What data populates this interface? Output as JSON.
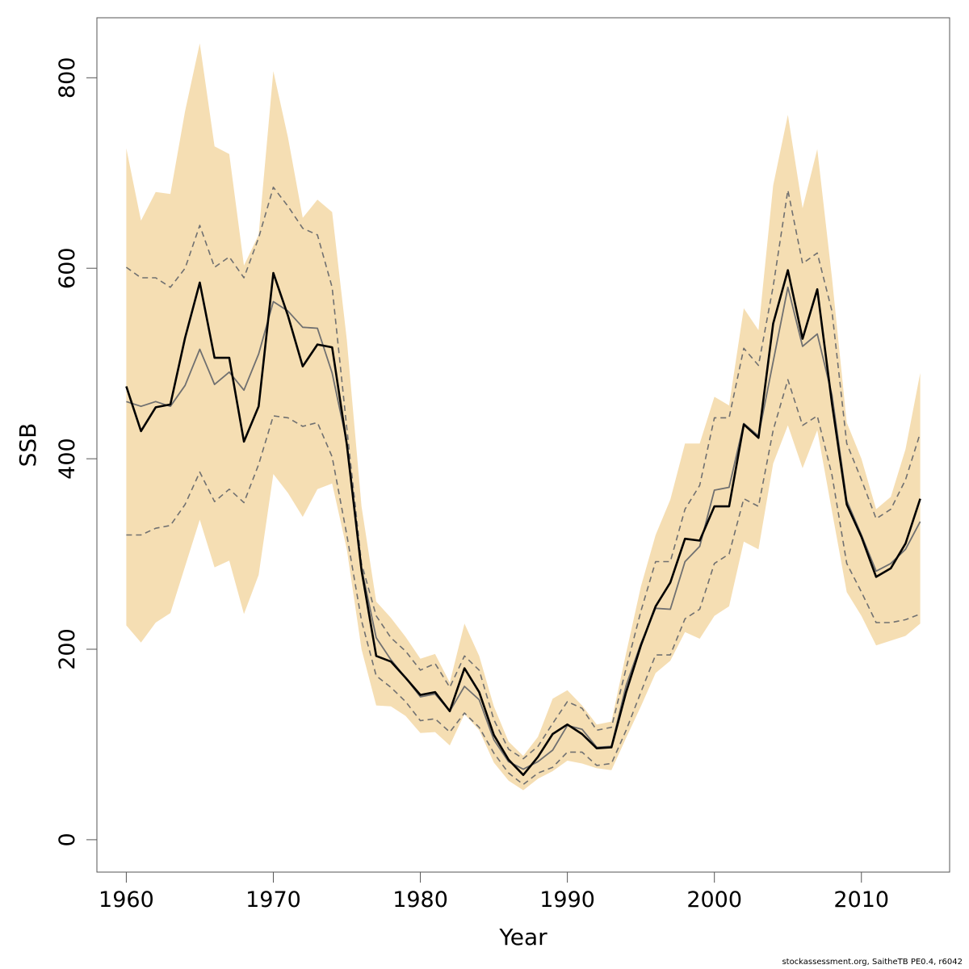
{
  "chart_data": {
    "type": "line",
    "xlabel": "Year",
    "ylabel": "SSB",
    "xlim": [
      1958,
      2016
    ],
    "ylim": [
      -34,
      863
    ],
    "x_ticks": [
      1960,
      1970,
      1980,
      1990,
      2000,
      2010
    ],
    "y_ticks": [
      0,
      200,
      400,
      600,
      800
    ],
    "grid": false,
    "legend": "none",
    "colors": {
      "band": "#f5deb3",
      "estimate": "#000000",
      "median": "#707070",
      "quantile": "#707070"
    },
    "x": [
      1960,
      1961,
      1962,
      1963,
      1964,
      1965,
      1966,
      1967,
      1968,
      1969,
      1970,
      1971,
      1972,
      1973,
      1974,
      1975,
      1976,
      1977,
      1978,
      1979,
      1980,
      1981,
      1982,
      1983,
      1984,
      1985,
      1986,
      1987,
      1988,
      1989,
      1990,
      1991,
      1992,
      1993,
      1994,
      1995,
      1996,
      1997,
      1998,
      1999,
      2000,
      2001,
      2002,
      2003,
      2004,
      2005,
      2006,
      2007,
      2008,
      2009,
      2010,
      2011,
      2012,
      2013,
      2014
    ],
    "series": [
      {
        "role": "band_upper",
        "values": [
          726,
          650,
          680,
          678,
          765,
          836,
          728,
          720,
          603,
          635,
          807,
          737,
          653,
          672,
          659,
          525,
          350,
          250,
          233,
          213,
          190,
          195,
          165,
          227,
          193,
          140,
          103,
          88,
          108,
          148,
          157,
          141,
          121,
          124,
          196,
          266,
          320,
          357,
          416,
          416,
          465,
          456,
          558,
          535,
          687,
          761,
          663,
          725,
          590,
          438,
          400,
          347,
          360,
          410,
          490
        ]
      },
      {
        "role": "quantile_upper",
        "values": [
          601,
          590,
          590,
          580,
          600,
          645,
          601,
          612,
          590,
          632,
          685,
          665,
          642,
          635,
          580,
          432,
          290,
          235,
          212,
          198,
          178,
          185,
          160,
          193,
          178,
          126,
          95,
          85,
          98,
          122,
          145,
          138,
          115,
          118,
          180,
          240,
          292,
          292,
          347,
          372,
          443,
          443,
          516,
          498,
          581,
          682,
          605,
          616,
          555,
          416,
          378,
          337,
          347,
          378,
          427
        ]
      },
      {
        "role": "median",
        "values": [
          460,
          455,
          460,
          455,
          477,
          515,
          478,
          491,
          472,
          510,
          565,
          555,
          538,
          537,
          490,
          417,
          285,
          212,
          189,
          170,
          150,
          153,
          135,
          161,
          147,
          105,
          82,
          74,
          82,
          94,
          120,
          116,
          97,
          98,
          162,
          206,
          243,
          242,
          292,
          308,
          367,
          370,
          437,
          424,
          502,
          580,
          518,
          531,
          467,
          356,
          320,
          282,
          290,
          305,
          334
        ]
      },
      {
        "role": "estimate",
        "values": [
          476,
          429,
          454,
          457,
          527,
          585,
          506,
          506,
          418,
          455,
          595,
          550,
          497,
          520,
          517,
          415,
          283,
          193,
          187,
          170,
          152,
          155,
          135,
          180,
          155,
          110,
          84,
          68,
          87,
          111,
          121,
          111,
          96,
          97,
          155,
          204,
          245,
          270,
          316,
          314,
          350,
          350,
          436,
          422,
          542,
          598,
          526,
          578,
          458,
          352,
          318,
          276,
          285,
          311,
          358
        ]
      },
      {
        "role": "quantile_lower",
        "values": [
          320,
          320,
          327,
          330,
          352,
          386,
          355,
          368,
          354,
          394,
          445,
          443,
          434,
          438,
          402,
          320,
          230,
          172,
          160,
          145,
          125,
          127,
          113,
          133,
          118,
          91,
          70,
          58,
          70,
          76,
          92,
          92,
          78,
          80,
          115,
          155,
          194,
          194,
          232,
          242,
          290,
          300,
          358,
          350,
          430,
          483,
          435,
          445,
          383,
          290,
          260,
          228,
          228,
          231,
          237
        ]
      },
      {
        "role": "band_lower",
        "values": [
          225,
          207,
          228,
          238,
          287,
          336,
          286,
          293,
          237,
          278,
          384,
          364,
          339,
          368,
          374,
          305,
          200,
          141,
          140,
          130,
          112,
          113,
          99,
          132,
          115,
          81,
          62,
          52,
          64,
          72,
          83,
          80,
          75,
          73,
          107,
          140,
          175,
          188,
          218,
          211,
          235,
          245,
          313,
          305,
          395,
          435,
          390,
          430,
          345,
          260,
          235,
          204,
          209,
          214,
          227
        ]
      }
    ]
  },
  "footer": {
    "credit": "stockassessment.org, SaitheTB  PE0.4, r6042"
  }
}
